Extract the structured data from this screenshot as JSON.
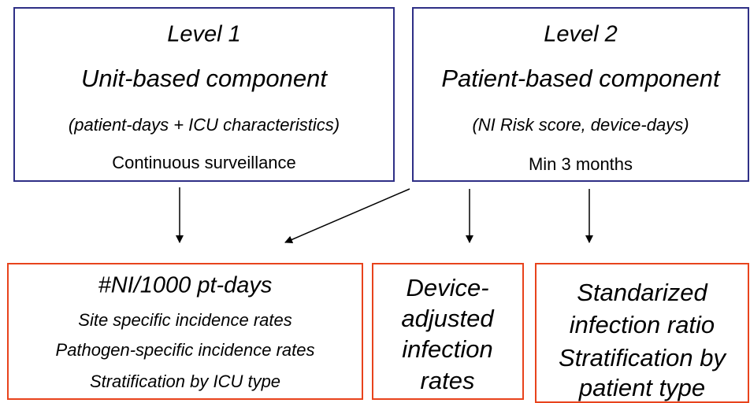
{
  "levels": [
    {
      "title": "Level 1",
      "component": "Unit-based component",
      "detail": "(patient-days + ICU characteristics)",
      "duration": "Continuous surveillance"
    },
    {
      "title": "Level 2",
      "component": "Patient-based component",
      "detail": "(NI Risk score, device-days)",
      "duration": "Min 3 months"
    }
  ],
  "outputs": [
    {
      "lines": [
        "#NI/1000 pt-days",
        "Site specific incidence rates",
        "Pathogen-specific incidence rates",
        "Stratification by ICU type"
      ]
    },
    {
      "lines": [
        "Device-",
        "adjusted",
        "infection",
        "rates"
      ]
    },
    {
      "lines": [
        "Standarized",
        "infection ratio",
        "Stratification by",
        "patient type"
      ]
    }
  ]
}
